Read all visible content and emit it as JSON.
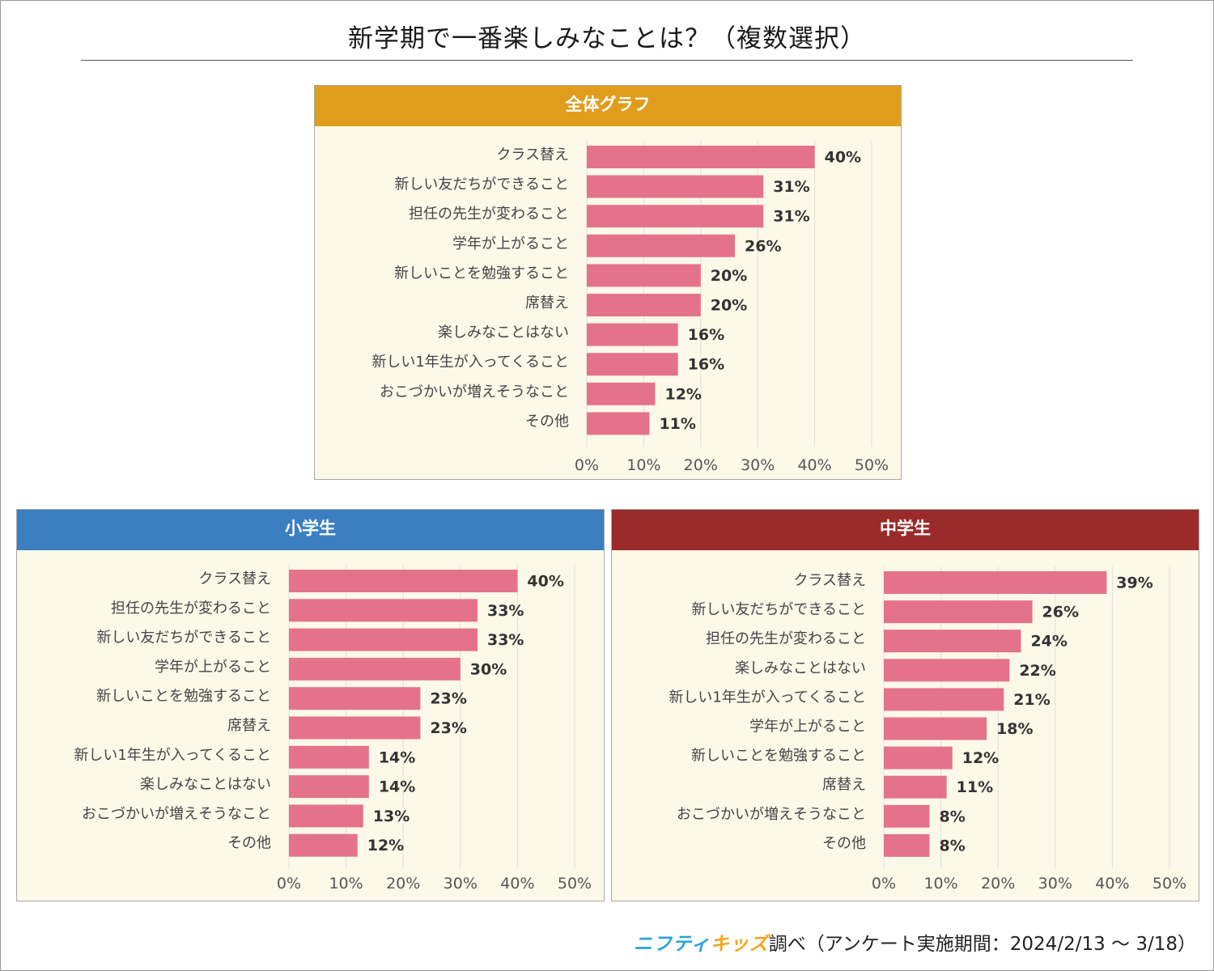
{
  "title": "新学期で一番楽しみなことは？（複数選択）",
  "colors": {
    "bar": "#e5728b",
    "panel_bg": "#fcf9e9",
    "grid": "#e3e1d6",
    "overall_header": "#e09d1c",
    "elementary_header": "#3b7fc1",
    "junior_high_header": "#9b2a2b"
  },
  "panels": {
    "overall": {
      "header": "全体グラフ"
    },
    "elementary": {
      "header": "小学生"
    },
    "junior_high": {
      "header": "中学生"
    }
  },
  "chart_data": [
    {
      "type": "bar",
      "orientation": "horizontal",
      "panel": "overall",
      "title": "全体グラフ",
      "categories": [
        "クラス替え",
        "新しい友だちができること",
        "担任の先生が変わること",
        "学年が上がること",
        "新しいことを勉強すること",
        "席替え",
        "楽しみなことはない",
        "新しい1年生が入ってくること",
        "おこづかいが増えそうなこと",
        "その他"
      ],
      "values": [
        40,
        31,
        31,
        26,
        20,
        20,
        16,
        16,
        12,
        11
      ],
      "xlim": [
        0,
        50
      ],
      "ticks": [
        "0%",
        "10%",
        "20%",
        "30%",
        "40%",
        "50%"
      ],
      "grid": true
    },
    {
      "type": "bar",
      "orientation": "horizontal",
      "panel": "elementary",
      "title": "小学生",
      "categories": [
        "クラス替え",
        "担任の先生が変わること",
        "新しい友だちができること",
        "学年が上がること",
        "新しいことを勉強すること",
        "席替え",
        "新しい1年生が入ってくること",
        "楽しみなことはない",
        "おこづかいが増えそうなこと",
        "その他"
      ],
      "values": [
        40,
        33,
        33,
        30,
        23,
        23,
        14,
        14,
        13,
        12
      ],
      "xlim": [
        0,
        50
      ],
      "ticks": [
        "0%",
        "10%",
        "20%",
        "30%",
        "40%",
        "50%"
      ],
      "grid": true
    },
    {
      "type": "bar",
      "orientation": "horizontal",
      "panel": "junior_high",
      "title": "中学生",
      "categories": [
        "クラス替え",
        "新しい友だちができること",
        "担任の先生が変わること",
        "楽しみなことはない",
        "新しい1年生が入ってくること",
        "学年が上がること",
        "新しいことを勉強すること",
        "席替え",
        "おこづかいが増えそうなこと",
        "その他"
      ],
      "values": [
        39,
        26,
        24,
        22,
        21,
        18,
        12,
        11,
        8,
        8
      ],
      "xlim": [
        0,
        50
      ],
      "ticks": [
        "0%",
        "10%",
        "20%",
        "30%",
        "40%",
        "50%"
      ],
      "grid": true
    }
  ],
  "footer": {
    "logo_main": "ニフティ",
    "logo_kids": "キッズ",
    "text": "調べ（アンケート実施期間：2024/2/13 ～ 3/18）"
  }
}
